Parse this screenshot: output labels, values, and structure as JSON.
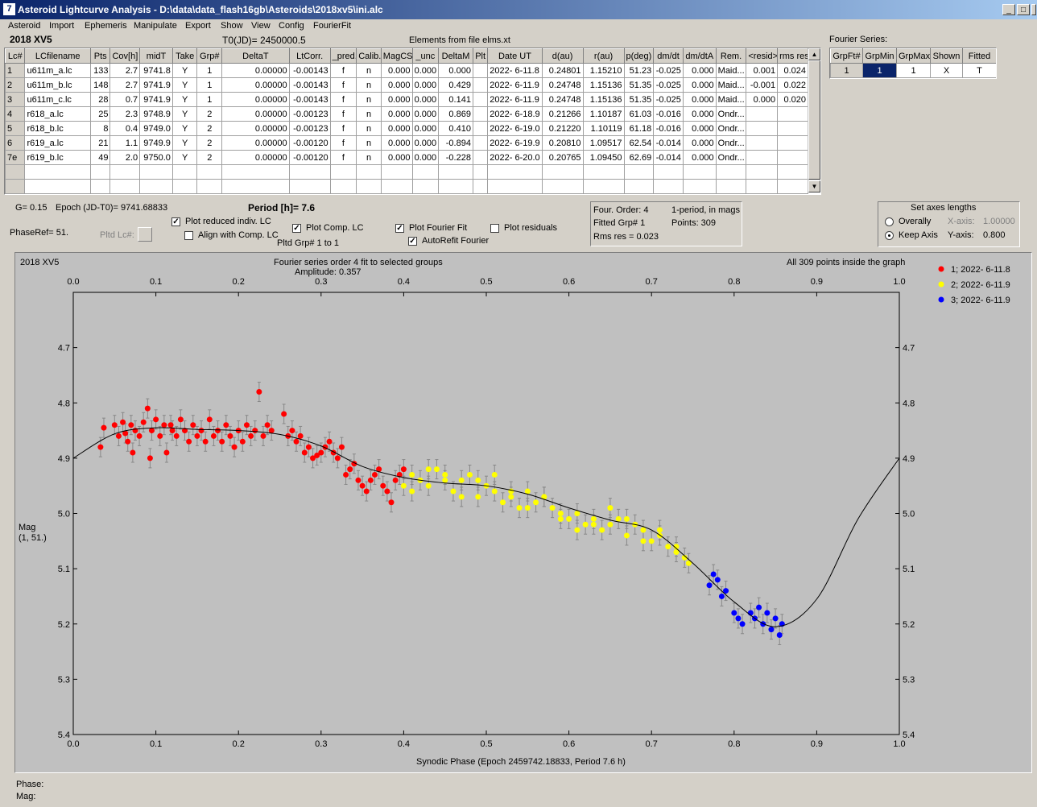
{
  "window": {
    "title": "Asteroid Lightcurve Analysis  -  D:\\data\\data_flash16gb\\Asteroids\\2018xv5\\ini.alc",
    "icon": "7",
    "controls": [
      "_",
      "□",
      "×"
    ]
  },
  "menu": [
    "Asteroid",
    "Import",
    "Ephemeris",
    "Manipulate",
    "Export",
    "Show",
    "View",
    "Config",
    "FourierFit"
  ],
  "header": {
    "asteroid": "2018 XV5",
    "t0": "T0(JD)= 2450000.5",
    "elements": "Elements from file elms.xt"
  },
  "lc_table": {
    "columns": [
      "Lc#",
      "LCfilename",
      "Pts",
      "Cov[h]",
      "midT",
      "Take",
      "Grp#",
      "DeltaT",
      "LtCorr.",
      "_pred.",
      "Calib.",
      "MagCS",
      "_unc",
      "DeltaM",
      "Plt",
      "Date UT",
      "d(au)",
      "r(au)",
      "p(deg)",
      "dm/dt",
      "dm/dtA",
      "Rem.",
      "<resid>",
      "rms res"
    ],
    "rows": [
      [
        "1",
        "u611m_a.lc",
        "133",
        "2.7",
        "9741.8",
        "Y",
        "1",
        "0.00000",
        "-0.00143",
        "f",
        "n",
        "0.000",
        "0.000",
        "0.000",
        "",
        "2022- 6-11.8",
        "0.24801",
        "1.15210",
        "51.23",
        "-0.025",
        "0.000",
        "Maid...",
        "0.001",
        "0.024"
      ],
      [
        "2",
        "u611m_b.lc",
        "148",
        "2.7",
        "9741.9",
        "Y",
        "1",
        "0.00000",
        "-0.00143",
        "f",
        "n",
        "0.000",
        "0.000",
        "0.429",
        "",
        "2022- 6-11.9",
        "0.24748",
        "1.15136",
        "51.35",
        "-0.025",
        "0.000",
        "Maid...",
        "-0.001",
        "0.022"
      ],
      [
        "3",
        "u611m_c.lc",
        "28",
        "0.7",
        "9741.9",
        "Y",
        "1",
        "0.00000",
        "-0.00143",
        "f",
        "n",
        "0.000",
        "0.000",
        "0.141",
        "",
        "2022- 6-11.9",
        "0.24748",
        "1.15136",
        "51.35",
        "-0.025",
        "0.000",
        "Maid...",
        "0.000",
        "0.020"
      ],
      [
        "4",
        "r618_a.lc",
        "25",
        "2.3",
        "9748.9",
        "Y",
        "2",
        "0.00000",
        "-0.00123",
        "f",
        "n",
        "0.000",
        "0.000",
        "0.869",
        "",
        "2022- 6-18.9",
        "0.21266",
        "1.10187",
        "61.03",
        "-0.016",
        "0.000",
        "Ondr...",
        "",
        ""
      ],
      [
        "5",
        "r618_b.lc",
        "8",
        "0.4",
        "9749.0",
        "Y",
        "2",
        "0.00000",
        "-0.00123",
        "f",
        "n",
        "0.000",
        "0.000",
        "0.410",
        "",
        "2022- 6-19.0",
        "0.21220",
        "1.10119",
        "61.18",
        "-0.016",
        "0.000",
        "Ondr...",
        "",
        ""
      ],
      [
        "6",
        "r619_a.lc",
        "21",
        "1.1",
        "9749.9",
        "Y",
        "2",
        "0.00000",
        "-0.00120",
        "f",
        "n",
        "0.000",
        "0.000",
        "-0.894",
        "",
        "2022- 6-19.9",
        "0.20810",
        "1.09517",
        "62.54",
        "-0.014",
        "0.000",
        "Ondr...",
        "",
        ""
      ],
      [
        "7e",
        "r619_b.lc",
        "49",
        "2.0",
        "9750.0",
        "Y",
        "2",
        "0.00000",
        "-0.00120",
        "f",
        "n",
        "0.000",
        "0.000",
        "-0.228",
        "",
        "2022- 6-20.0",
        "0.20765",
        "1.09450",
        "62.69",
        "-0.014",
        "0.000",
        "Ondr...",
        "",
        ""
      ],
      [
        "",
        "",
        "",
        "",
        "",
        "",
        "",
        "",
        "",
        "",
        "",
        "",
        "",
        "",
        "",
        "",
        "",
        "",
        "",
        "",
        "",
        "",
        "",
        ""
      ],
      [
        "",
        "",
        "",
        "",
        "",
        "",
        "",
        "",
        "",
        "",
        "",
        "",
        "",
        "",
        "",
        "",
        "",
        "",
        "",
        "",
        "",
        "",
        "",
        ""
      ]
    ],
    "scroll_up": "▲",
    "scroll_down": "▼"
  },
  "fourier_series": {
    "title": "Fourier Series:",
    "columns": [
      "GrpFt#",
      "GrpMin",
      "GrpMax",
      "Shown",
      "Fitted"
    ],
    "row": [
      "1",
      "1",
      "1",
      "X",
      "T"
    ]
  },
  "controls": {
    "g": "G= 0.15",
    "epoch": "Epoch (JD-T0)= 9741.68833",
    "period": "Period [h]= 7.6",
    "phaseref": "PhaseRef= 51.",
    "pltd_lc": "Pltd Lc#:",
    "pltd_grp": "Pltd Grp#  1   to   1",
    "plot_reduced": "Plot reduced indiv. LC",
    "align_comp": "Align with Comp. LC",
    "plot_comp": "Plot Comp. LC",
    "plot_fourier": "Plot Fourier Fit",
    "autorefit": "AutoRefit Fourier",
    "plot_residuals": "Plot residuals",
    "check_mark": "✓"
  },
  "fourier_info": {
    "order": "Four. Order:  4",
    "one_period": "1-period, in mags",
    "fitted": "Fitted Grp# 1",
    "points": "Points: 309",
    "rms": "Rms res      = 0.023"
  },
  "axes_box": {
    "title": "Set axes lengths",
    "overally": "Overally",
    "keep_axis": "Keep Axis",
    "x_label": "X-axis:",
    "x_value": "1.00000",
    "y_label": "Y-axis:",
    "y_value": "0.800",
    "selected": "keep_axis"
  },
  "plot": {
    "name": "2018 XV5",
    "title": "Fourier series order 4 fit to selected groups",
    "amplitude": "Amplitude: 0.357",
    "inside": "All 309 points inside the graph",
    "ylabel": "Mag",
    "ylabel2": "(1, 51.)",
    "xlabel": "Synodic Phase (Epoch 2459742.18833, Period 7.6 h)",
    "legend": [
      {
        "label": "1; 2022- 6-11.8",
        "color": "#ff0000"
      },
      {
        "label": "2; 2022- 6-11.9",
        "color": "#ffff00"
      },
      {
        "label": "3; 2022- 6-11.9",
        "color": "#0000ff"
      }
    ]
  },
  "chart_data": {
    "type": "scatter",
    "xlabel": "Synodic Phase (Epoch 2459742.18833, Period 7.6 h)",
    "ylabel": "Mag",
    "xlim": [
      0.0,
      1.0
    ],
    "ylim": [
      5.4,
      4.6
    ],
    "y_inverted": true,
    "x_ticks": [
      "0.0",
      "0.1",
      "0.2",
      "0.3",
      "0.4",
      "0.5",
      "0.6",
      "0.7",
      "0.8",
      "0.9",
      "1.0"
    ],
    "y_ticks": [
      "4.7",
      "4.8",
      "4.9",
      "5.0",
      "5.1",
      "5.2",
      "5.3",
      "5.4"
    ],
    "background": "#c0c0c0",
    "series": [
      {
        "name": "1; 2022- 6-11.8",
        "color": "#ff0000",
        "x": [
          0.033,
          0.037,
          0.05,
          0.055,
          0.06,
          0.063,
          0.066,
          0.07,
          0.072,
          0.075,
          0.08,
          0.085,
          0.09,
          0.093,
          0.095,
          0.1,
          0.105,
          0.11,
          0.113,
          0.118,
          0.12,
          0.125,
          0.13,
          0.135,
          0.14,
          0.145,
          0.15,
          0.155,
          0.16,
          0.165,
          0.17,
          0.175,
          0.18,
          0.185,
          0.19,
          0.195,
          0.2,
          0.205,
          0.21,
          0.215,
          0.22,
          0.225,
          0.23,
          0.235,
          0.24,
          0.255,
          0.26,
          0.265,
          0.27,
          0.275,
          0.28,
          0.285,
          0.29,
          0.295,
          0.3,
          0.305,
          0.31,
          0.315,
          0.32,
          0.325,
          0.33,
          0.335,
          0.34,
          0.345,
          0.35,
          0.355,
          0.36,
          0.365,
          0.37,
          0.375,
          0.38,
          0.385,
          0.39,
          0.395,
          0.4
        ],
        "y": [
          4.88,
          4.845,
          4.84,
          4.86,
          4.835,
          4.855,
          4.87,
          4.84,
          4.89,
          4.85,
          4.86,
          4.835,
          4.81,
          4.9,
          4.85,
          4.83,
          4.86,
          4.84,
          4.89,
          4.84,
          4.85,
          4.86,
          4.83,
          4.85,
          4.87,
          4.84,
          4.86,
          4.85,
          4.87,
          4.83,
          4.86,
          4.85,
          4.87,
          4.84,
          4.86,
          4.88,
          4.85,
          4.87,
          4.84,
          4.86,
          4.85,
          4.78,
          4.86,
          4.84,
          4.85,
          4.82,
          4.86,
          4.85,
          4.87,
          4.86,
          4.89,
          4.88,
          4.9,
          4.895,
          4.89,
          4.88,
          4.87,
          4.89,
          4.9,
          4.88,
          4.93,
          4.92,
          4.91,
          4.94,
          4.95,
          4.96,
          4.94,
          4.93,
          4.92,
          4.95,
          4.96,
          4.98,
          4.94,
          4.93,
          4.92
        ]
      },
      {
        "name": "2; 2022- 6-11.9",
        "color": "#ffff00",
        "x": [
          0.4,
          0.41,
          0.42,
          0.43,
          0.44,
          0.45,
          0.46,
          0.47,
          0.48,
          0.49,
          0.5,
          0.51,
          0.52,
          0.53,
          0.54,
          0.55,
          0.56,
          0.57,
          0.58,
          0.59,
          0.6,
          0.61,
          0.62,
          0.63,
          0.64,
          0.65,
          0.66,
          0.67,
          0.68,
          0.69,
          0.7,
          0.71,
          0.72,
          0.73,
          0.74,
          0.745,
          0.41,
          0.43,
          0.45,
          0.47,
          0.49,
          0.51,
          0.53,
          0.55,
          0.57,
          0.59,
          0.61,
          0.63,
          0.65,
          0.67,
          0.69,
          0.71,
          0.73
        ],
        "y": [
          4.95,
          4.93,
          4.94,
          4.95,
          4.92,
          4.93,
          4.96,
          4.94,
          4.93,
          4.97,
          4.95,
          4.96,
          4.98,
          4.97,
          4.99,
          4.96,
          4.98,
          4.97,
          4.99,
          5.0,
          5.01,
          5.0,
          5.02,
          5.01,
          5.03,
          5.02,
          5.01,
          5.04,
          5.02,
          5.03,
          5.05,
          5.04,
          5.06,
          5.07,
          5.08,
          5.09,
          4.96,
          4.92,
          4.94,
          4.97,
          4.94,
          4.93,
          4.96,
          4.99,
          4.97,
          5.01,
          5.03,
          5.02,
          4.99,
          5.01,
          5.05,
          5.03,
          5.06
        ]
      },
      {
        "name": "3; 2022- 6-11.9",
        "color": "#0000ff",
        "x": [
          0.77,
          0.775,
          0.78,
          0.785,
          0.79,
          0.8,
          0.805,
          0.81,
          0.82,
          0.825,
          0.83,
          0.835,
          0.84,
          0.845,
          0.85,
          0.855,
          0.858
        ],
        "y": [
          5.13,
          5.11,
          5.12,
          5.15,
          5.14,
          5.18,
          5.19,
          5.2,
          5.18,
          5.19,
          5.17,
          5.2,
          5.18,
          5.21,
          5.19,
          5.22,
          5.2
        ]
      }
    ],
    "fit_curve": {
      "x": [
        0.0,
        0.05,
        0.1,
        0.15,
        0.2,
        0.25,
        0.3,
        0.35,
        0.4,
        0.45,
        0.5,
        0.55,
        0.6,
        0.65,
        0.7,
        0.75,
        0.8,
        0.85,
        0.9,
        0.95,
        1.0
      ],
      "y": [
        4.9,
        4.856,
        4.845,
        4.848,
        4.85,
        4.857,
        4.878,
        4.915,
        4.935,
        4.945,
        4.95,
        4.965,
        4.99,
        5.012,
        5.03,
        5.09,
        5.16,
        5.205,
        5.155,
        5.01,
        4.9
      ]
    }
  },
  "status": {
    "phase": "Phase:",
    "mag": "Mag:"
  }
}
